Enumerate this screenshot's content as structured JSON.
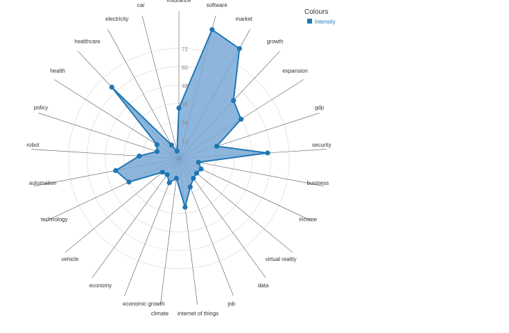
{
  "chart_data": {
    "type": "radar",
    "axes": [
      "insurance",
      "software",
      "market",
      "growth",
      "expansion",
      "gdp",
      "security",
      "business",
      "income",
      "virtual reality",
      "data",
      "job",
      "internet of things",
      "climate",
      "economic growth",
      "economy",
      "vehicle",
      "technology",
      "automation",
      "robot",
      "policy",
      "health",
      "healthcare",
      "electricity",
      "car"
    ],
    "series": [
      {
        "name": "Intensity",
        "values": [
          33,
          87,
          82,
          52,
          48,
          26,
          58,
          13,
          16,
          15,
          16,
          20,
          32,
          13,
          17,
          13,
          14,
          36,
          42,
          26,
          15,
          17,
          64,
          10,
          5
        ]
      }
    ],
    "rmax": 72,
    "ticks": [
      12,
      24,
      36,
      48,
      60,
      72
    ],
    "legend": {
      "title": "Colours",
      "position": "top-right"
    },
    "colors": {
      "fill": "#7aa9d6",
      "stroke": "#1f77b4",
      "grid": "#e6e6e6",
      "spoke": "#555555"
    }
  }
}
